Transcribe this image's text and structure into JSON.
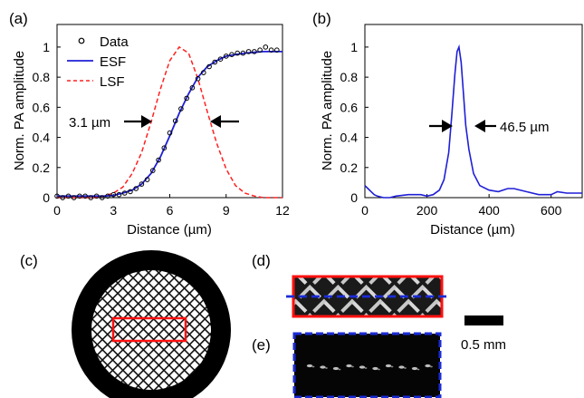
{
  "chart_data": [
    {
      "type": "line",
      "panel_label": "(a)",
      "xlabel": "Distance (µm)",
      "ylabel": "Norm. PA amplitude",
      "xlim": [
        0,
        12
      ],
      "ylim": [
        0,
        1.15
      ],
      "xticks": [
        "0",
        "3",
        "6",
        "9",
        "12"
      ],
      "yticks": [
        "0",
        "0.2",
        "0.4",
        "0.6",
        "0.8",
        "1"
      ],
      "legend": [
        "Data",
        "ESF",
        "LSF"
      ],
      "legend_position": "top-left",
      "annotation": "3.1 µm",
      "series": [
        {
          "name": "Data",
          "style": "markers",
          "color": "#000000",
          "x": [
            0.0,
            0.3,
            0.6,
            0.9,
            1.2,
            1.5,
            1.8,
            2.1,
            2.4,
            2.7,
            3.0,
            3.3,
            3.6,
            3.9,
            4.2,
            4.5,
            4.8,
            5.1,
            5.4,
            5.7,
            6.0,
            6.3,
            6.6,
            6.9,
            7.2,
            7.5,
            7.8,
            8.1,
            8.4,
            8.7,
            9.0,
            9.3,
            9.6,
            9.9,
            10.2,
            10.5,
            10.8,
            11.1,
            11.4,
            11.7
          ],
          "y": [
            0.01,
            0.0,
            0.01,
            0.0,
            0.01,
            0.01,
            0.0,
            0.01,
            0.0,
            0.01,
            0.02,
            0.02,
            0.03,
            0.04,
            0.06,
            0.09,
            0.12,
            0.18,
            0.25,
            0.33,
            0.43,
            0.51,
            0.59,
            0.66,
            0.73,
            0.79,
            0.83,
            0.87,
            0.9,
            0.92,
            0.94,
            0.95,
            0.96,
            0.96,
            0.97,
            0.97,
            0.98,
            1.0,
            0.98,
            0.98
          ]
        },
        {
          "name": "ESF",
          "style": "solid",
          "color": "#1f1fd6",
          "x": [
            0,
            0.5,
            1,
            1.5,
            2,
            2.5,
            3,
            3.5,
            4,
            4.5,
            5,
            5.5,
            6,
            6.5,
            7,
            7.5,
            8,
            8.5,
            9,
            9.5,
            10,
            10.5,
            11,
            11.5,
            12
          ],
          "y": [
            0.01,
            0.01,
            0.01,
            0.01,
            0.01,
            0.01,
            0.015,
            0.03,
            0.05,
            0.09,
            0.16,
            0.27,
            0.41,
            0.56,
            0.69,
            0.8,
            0.87,
            0.91,
            0.94,
            0.95,
            0.96,
            0.965,
            0.97,
            0.97,
            0.97
          ]
        },
        {
          "name": "LSF",
          "style": "dashed",
          "color": "#ff2020",
          "x": [
            0,
            0.5,
            1,
            1.5,
            2,
            2.5,
            3,
            3.5,
            4,
            4.5,
            5,
            5.5,
            6,
            6.5,
            7,
            7.5,
            8,
            8.5,
            9,
            9.5,
            10,
            10.5,
            11,
            11.5,
            12
          ],
          "y": [
            0,
            0,
            0,
            0,
            0,
            0.01,
            0.03,
            0.07,
            0.16,
            0.3,
            0.5,
            0.72,
            0.91,
            1.0,
            0.96,
            0.79,
            0.57,
            0.36,
            0.19,
            0.08,
            0.03,
            0.01,
            0,
            0,
            0
          ]
        }
      ]
    },
    {
      "type": "line",
      "panel_label": "(b)",
      "xlabel": "Distance (µm)",
      "ylabel": "Norm. PA amplitude",
      "xlim": [
        0,
        700
      ],
      "ylim": [
        0,
        1.15
      ],
      "xticks": [
        "0",
        "200",
        "400",
        "600"
      ],
      "yticks": [
        "0",
        "0.2",
        "0.4",
        "0.6",
        "0.8",
        "1"
      ],
      "annotation": "46.5 µm",
      "series": [
        {
          "color": "#1f1fd6",
          "x": [
            0,
            10,
            20,
            30,
            40,
            60,
            80,
            100,
            140,
            180,
            200,
            220,
            240,
            255,
            270,
            280,
            290,
            297,
            303,
            310,
            318,
            325,
            335,
            350,
            370,
            400,
            430,
            460,
            480,
            520,
            560,
            600,
            620,
            650,
            700
          ],
          "y": [
            0.08,
            0.06,
            0.04,
            0.02,
            0.01,
            0.0,
            0.0,
            0.01,
            0.02,
            0.02,
            0.01,
            0.02,
            0.05,
            0.12,
            0.3,
            0.55,
            0.82,
            0.97,
            1.0,
            0.9,
            0.68,
            0.48,
            0.32,
            0.16,
            0.08,
            0.05,
            0.04,
            0.06,
            0.06,
            0.04,
            0.02,
            0.02,
            0.04,
            0.03,
            0.03
          ]
        }
      ]
    }
  ],
  "panels": {
    "c": {
      "label": "(c)"
    },
    "d": {
      "label": "(d)"
    },
    "e": {
      "label": "(e)"
    },
    "scale_bar": {
      "label": "0.5 mm"
    }
  }
}
